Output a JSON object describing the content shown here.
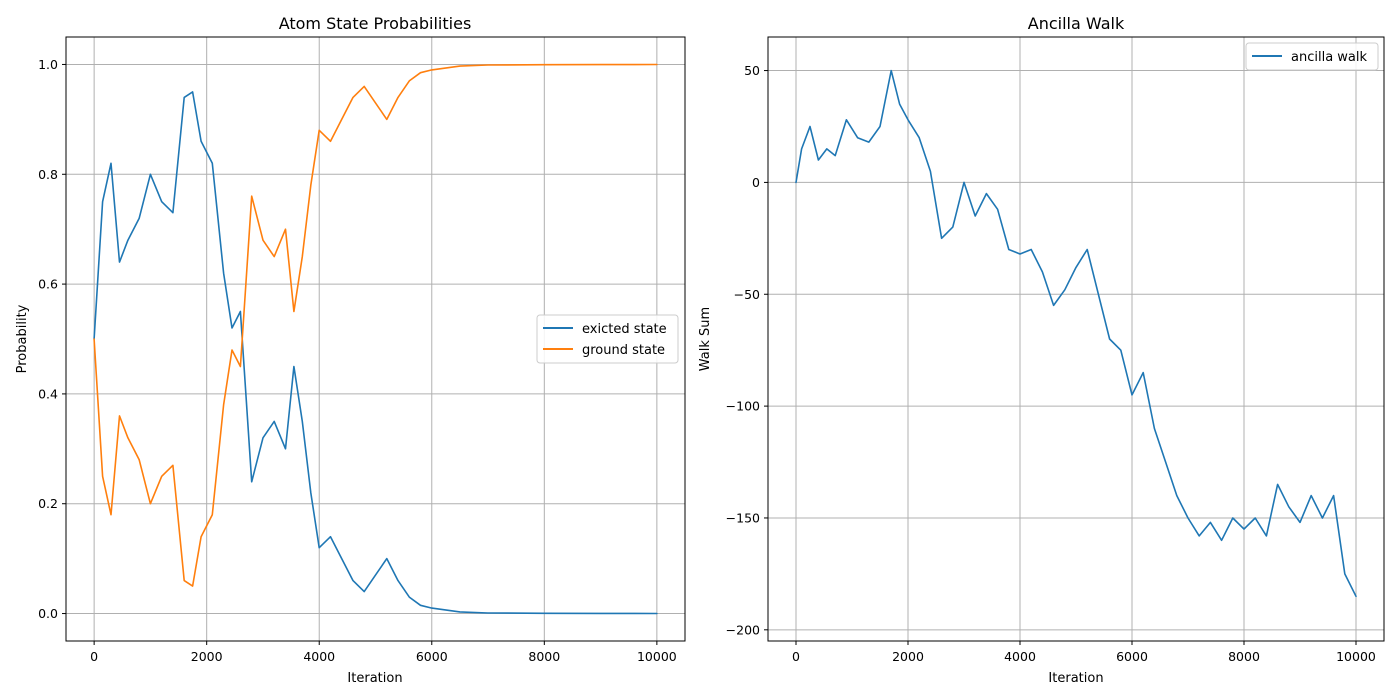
{
  "chart_data": [
    {
      "type": "line",
      "title": "Atom State Probabilities",
      "xlabel": "Iteration",
      "ylabel": "Probability",
      "xlim": [
        -500,
        10500
      ],
      "ylim": [
        -0.05,
        1.05
      ],
      "xticks": [
        0,
        2000,
        4000,
        6000,
        8000,
        10000
      ],
      "yticks": [
        0.0,
        0.2,
        0.4,
        0.6,
        0.8,
        1.0
      ],
      "xtick_labels": [
        "0",
        "2000",
        "4000",
        "6000",
        "8000",
        "10000"
      ],
      "ytick_labels": [
        "0.0",
        "0.2",
        "0.4",
        "0.6",
        "0.8",
        "1.0"
      ],
      "grid": true,
      "legend_position": "center-right",
      "series": [
        {
          "name": "exicted state",
          "color": "#1f77b4",
          "x": [
            0,
            150,
            300,
            450,
            600,
            800,
            1000,
            1200,
            1400,
            1600,
            1750,
            1900,
            2100,
            2300,
            2450,
            2600,
            2800,
            3000,
            3200,
            3400,
            3550,
            3700,
            3850,
            4000,
            4200,
            4400,
            4600,
            4800,
            5000,
            5200,
            5400,
            5600,
            5800,
            6000,
            6500,
            7000,
            8000,
            9000,
            10000
          ],
          "values": [
            0.5,
            0.75,
            0.82,
            0.64,
            0.68,
            0.72,
            0.8,
            0.75,
            0.73,
            0.94,
            0.95,
            0.86,
            0.82,
            0.62,
            0.52,
            0.55,
            0.24,
            0.32,
            0.35,
            0.3,
            0.45,
            0.35,
            0.22,
            0.12,
            0.14,
            0.1,
            0.06,
            0.04,
            0.07,
            0.1,
            0.06,
            0.03,
            0.015,
            0.01,
            0.003,
            0.001,
            0.0005,
            0.0002,
            0.0001
          ]
        },
        {
          "name": "ground state",
          "color": "#ff7f0e",
          "x": [
            0,
            150,
            300,
            450,
            600,
            800,
            1000,
            1200,
            1400,
            1600,
            1750,
            1900,
            2100,
            2300,
            2450,
            2600,
            2800,
            3000,
            3200,
            3400,
            3550,
            3700,
            3850,
            4000,
            4200,
            4400,
            4600,
            4800,
            5000,
            5200,
            5400,
            5600,
            5800,
            6000,
            6500,
            7000,
            8000,
            9000,
            10000
          ],
          "values": [
            0.5,
            0.25,
            0.18,
            0.36,
            0.32,
            0.28,
            0.2,
            0.25,
            0.27,
            0.06,
            0.05,
            0.14,
            0.18,
            0.38,
            0.48,
            0.45,
            0.76,
            0.68,
            0.65,
            0.7,
            0.55,
            0.65,
            0.78,
            0.88,
            0.86,
            0.9,
            0.94,
            0.96,
            0.93,
            0.9,
            0.94,
            0.97,
            0.985,
            0.99,
            0.997,
            0.999,
            0.9995,
            0.9998,
            0.9999
          ]
        }
      ]
    },
    {
      "type": "line",
      "title": "Ancilla Walk",
      "xlabel": "Iteration",
      "ylabel": "Walk Sum",
      "xlim": [
        -500,
        10500
      ],
      "ylim": [
        -205,
        65
      ],
      "xticks": [
        0,
        2000,
        4000,
        6000,
        8000,
        10000
      ],
      "yticks": [
        -200,
        -150,
        -100,
        -50,
        0,
        50
      ],
      "xtick_labels": [
        "0",
        "2000",
        "4000",
        "6000",
        "8000",
        "10000"
      ],
      "ytick_labels": [
        "−200",
        "−150",
        "−100",
        "−50",
        "0",
        "50"
      ],
      "grid": true,
      "legend_position": "top-right",
      "series": [
        {
          "name": "ancilla walk",
          "color": "#1f77b4",
          "x": [
            0,
            100,
            250,
            400,
            550,
            700,
            900,
            1100,
            1300,
            1500,
            1700,
            1850,
            2000,
            2200,
            2400,
            2600,
            2800,
            3000,
            3200,
            3400,
            3600,
            3800,
            4000,
            4200,
            4400,
            4600,
            4800,
            5000,
            5200,
            5400,
            5600,
            5800,
            6000,
            6200,
            6400,
            6600,
            6800,
            7000,
            7200,
            7400,
            7600,
            7800,
            8000,
            8200,
            8400,
            8600,
            8800,
            9000,
            9200,
            9400,
            9600,
            9800,
            10000
          ],
          "values": [
            0,
            15,
            25,
            10,
            15,
            12,
            28,
            20,
            18,
            25,
            50,
            35,
            28,
            20,
            5,
            -25,
            -20,
            0,
            -15,
            -5,
            -12,
            -30,
            -32,
            -30,
            -40,
            -55,
            -48,
            -38,
            -30,
            -50,
            -70,
            -75,
            -95,
            -85,
            -110,
            -125,
            -140,
            -150,
            -158,
            -152,
            -160,
            -150,
            -155,
            -150,
            -158,
            -135,
            -145,
            -152,
            -140,
            -150,
            -140,
            -175,
            -185
          ]
        }
      ]
    }
  ]
}
